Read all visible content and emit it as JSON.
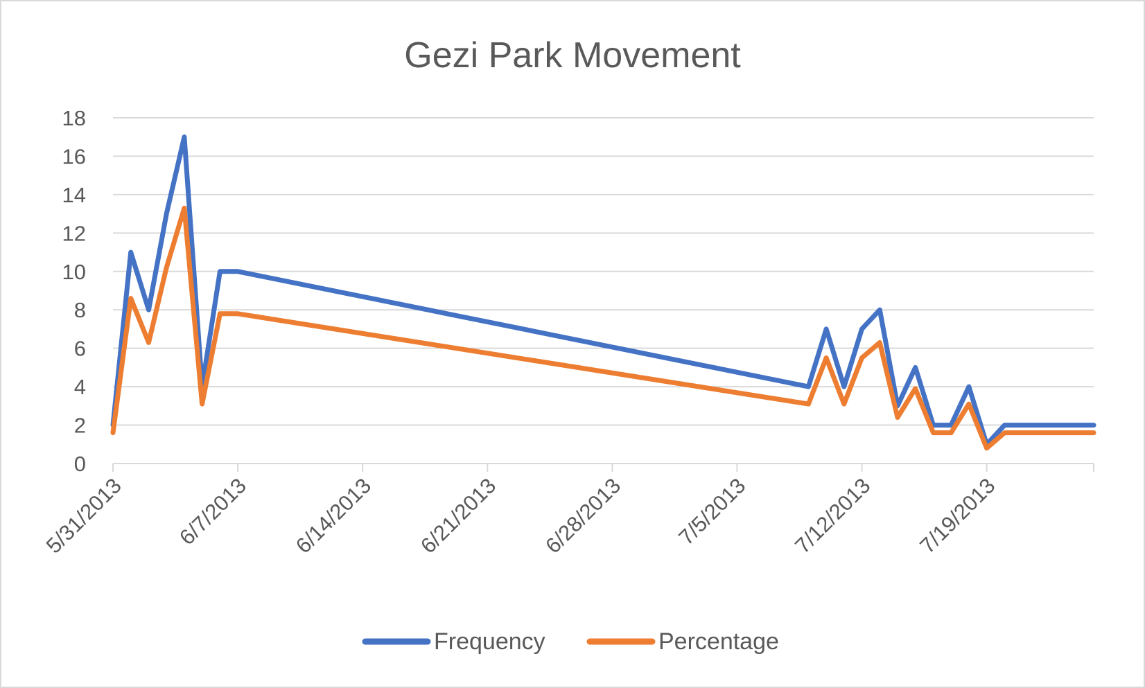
{
  "chart_data": {
    "type": "line",
    "title": "Gezi Park Movement",
    "xlabel": "",
    "ylabel": "",
    "ylim": [
      0,
      18
    ],
    "y_ticks": [
      "0",
      "2",
      "4",
      "6",
      "8",
      "10",
      "12",
      "14",
      "16",
      "18"
    ],
    "x_range": [
      "5/31/2013",
      "7/25/2013"
    ],
    "x_ticks": [
      "5/31/2013",
      "6/7/2013",
      "6/14/2013",
      "6/21/2013",
      "6/28/2013",
      "7/5/2013",
      "7/12/2013",
      "7/19/2013"
    ],
    "x": [
      "5/31/2013",
      "6/1/2013",
      "6/2/2013",
      "6/3/2013",
      "6/4/2013",
      "6/5/2013",
      "6/6/2013",
      "6/7/2013",
      "7/9/2013",
      "7/10/2013",
      "7/11/2013",
      "7/12/2013",
      "7/13/2013",
      "7/14/2013",
      "7/15/2013",
      "7/16/2013",
      "7/17/2013",
      "7/18/2013",
      "7/19/2013",
      "7/20/2013",
      "7/25/2013"
    ],
    "series": [
      {
        "name": "Frequency",
        "color": "#4472C4",
        "values": [
          2,
          11,
          8,
          13,
          17,
          4,
          10,
          10,
          4,
          7,
          4,
          7,
          8,
          3,
          5,
          2,
          2,
          4,
          1,
          2,
          2
        ]
      },
      {
        "name": "Percentage",
        "color": "#ED7D31",
        "values": [
          1.6,
          8.6,
          6.3,
          10.2,
          13.3,
          3.1,
          7.8,
          7.8,
          3.1,
          5.5,
          3.1,
          5.5,
          6.3,
          2.4,
          3.9,
          1.6,
          1.6,
          3.1,
          0.8,
          1.6,
          1.6
        ]
      }
    ],
    "grid": true,
    "legend": "bottom",
    "gridline_color": "#D9D9D9",
    "text_color": "#595959"
  }
}
